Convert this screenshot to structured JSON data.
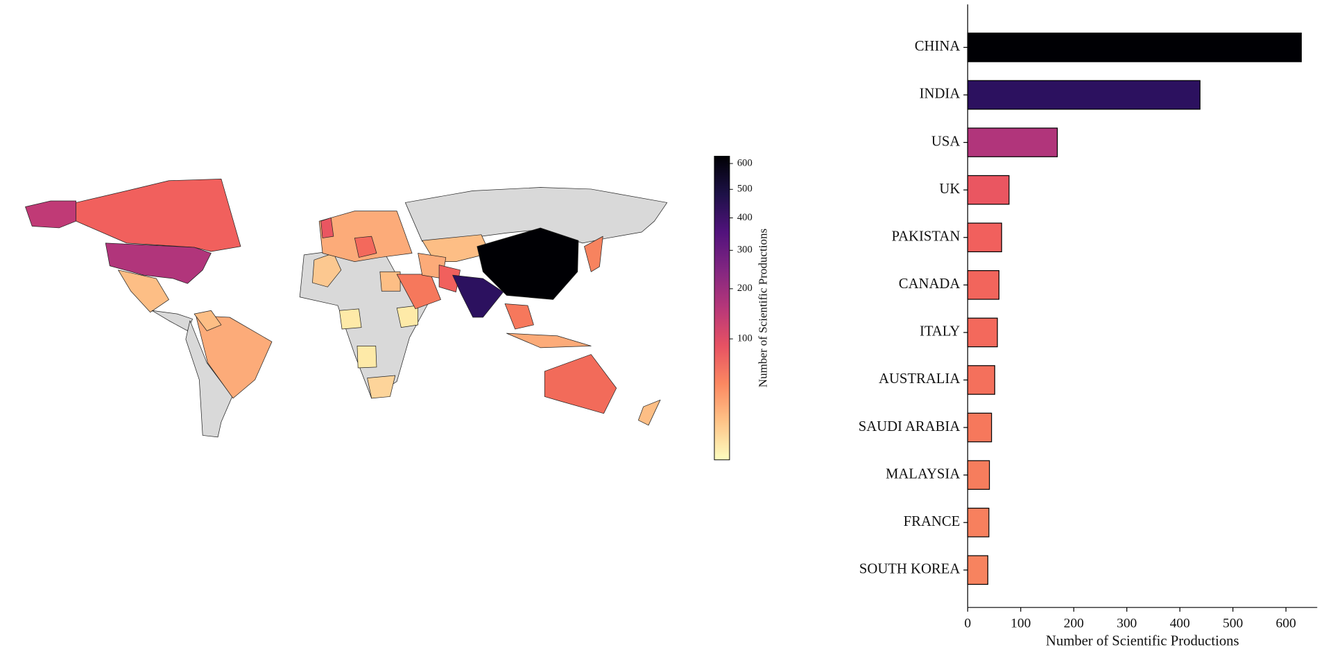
{
  "chart_data": [
    {
      "type": "choropleth",
      "colorbar_label": "Number of Scientific Productions",
      "clim": [
        0,
        630
      ],
      "scale": "sqrt",
      "colormap": [
        "#fcfdbf",
        "#fec488",
        "#fb8861",
        "#e75263",
        "#b73779",
        "#822681",
        "#51127c",
        "#1d1147",
        "#000004"
      ],
      "cticks": [
        100,
        200,
        300,
        400,
        500,
        600
      ]
    },
    {
      "type": "barh",
      "categories": [
        "CHINA",
        "INDIA",
        "USA",
        "UK",
        "PAKISTAN",
        "CANADA",
        "ITALY",
        "AUSTRALIA",
        "SAUDI ARABIA",
        "MALAYSIA",
        "FRANCE",
        "SOUTH KOREA"
      ],
      "values": [
        629,
        438,
        169,
        78,
        64,
        59,
        56,
        51,
        45,
        41,
        40,
        38
      ],
      "colors": [
        "#000004",
        "#2c115f",
        "#b1357b",
        "#ea5661",
        "#f1605d",
        "#f2655c",
        "#f3695c",
        "#f4705c",
        "#f6785c",
        "#f67d5d",
        "#f7805e",
        "#f7835f"
      ],
      "xlabel": "Number of Scientific Productions",
      "xlim": [
        0,
        659
      ],
      "xticks": [
        0,
        100,
        200,
        300,
        400,
        500,
        600
      ]
    }
  ]
}
